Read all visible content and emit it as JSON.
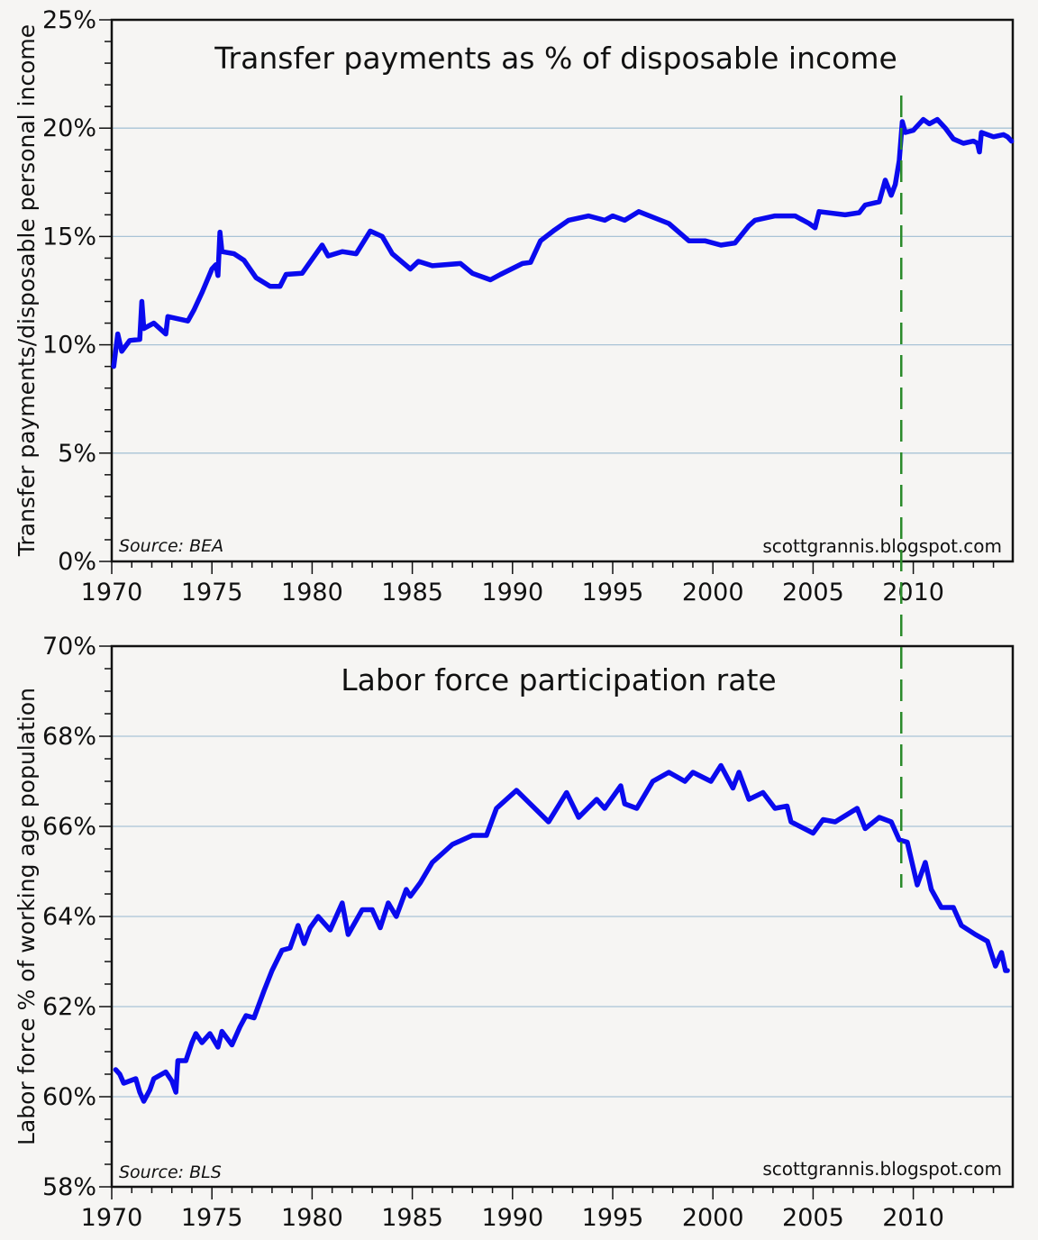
{
  "colors": {
    "line": "#0a0aee",
    "grid": "#a9c3d6",
    "marker": "#2a8a2a",
    "axis": "#111111"
  },
  "annotation": {
    "type": "vertical-dashed-line",
    "x": 2009.4
  },
  "chart_data": [
    {
      "type": "line",
      "title": "Transfer payments as % of disposable income",
      "ylabel": "Transfer payments/disposable personal income",
      "xlabel": "",
      "source": "Source: BEA",
      "watermark": "scottgrannis.blogspot.com",
      "xlim": [
        1970,
        2015
      ],
      "ylim": [
        0,
        25
      ],
      "xticks": [
        1970,
        1975,
        1980,
        1985,
        1990,
        1995,
        2000,
        2005,
        2010
      ],
      "xtick_labels": [
        "1970",
        "1975",
        "1980",
        "1985",
        "1990",
        "1995",
        "2000",
        "2005",
        "2010"
      ],
      "yticks": [
        0,
        5,
        10,
        15,
        20,
        25
      ],
      "ytick_labels": [
        "0%",
        "5%",
        "10%",
        "15%",
        "20%",
        "25%"
      ],
      "grid": true,
      "series": [
        {
          "name": "Transfer payments % of disposable income",
          "points": [
            [
              1970.1,
              9.0
            ],
            [
              1970.3,
              10.5
            ],
            [
              1970.5,
              9.7
            ],
            [
              1970.9,
              10.2
            ],
            [
              1971.4,
              10.25
            ],
            [
              1971.5,
              12.0
            ],
            [
              1971.6,
              10.75
            ],
            [
              1972.1,
              11.0
            ],
            [
              1972.7,
              10.5
            ],
            [
              1972.8,
              11.3
            ],
            [
              1973.8,
              11.1
            ],
            [
              1974.1,
              11.6
            ],
            [
              1974.5,
              12.4
            ],
            [
              1975.0,
              13.5
            ],
            [
              1975.2,
              13.7
            ],
            [
              1975.3,
              13.2
            ],
            [
              1975.4,
              15.2
            ],
            [
              1975.5,
              14.3
            ],
            [
              1976.1,
              14.2
            ],
            [
              1976.6,
              13.9
            ],
            [
              1977.2,
              13.1
            ],
            [
              1977.9,
              12.7
            ],
            [
              1978.4,
              12.7
            ],
            [
              1978.7,
              13.25
            ],
            [
              1979.5,
              13.3
            ],
            [
              1980.5,
              14.6
            ],
            [
              1980.8,
              14.1
            ],
            [
              1981.5,
              14.3
            ],
            [
              1982.2,
              14.2
            ],
            [
              1982.9,
              15.25
            ],
            [
              1983.5,
              15.0
            ],
            [
              1984.0,
              14.2
            ],
            [
              1984.9,
              13.5
            ],
            [
              1985.3,
              13.85
            ],
            [
              1986.0,
              13.65
            ],
            [
              1987.4,
              13.75
            ],
            [
              1988.0,
              13.3
            ],
            [
              1988.9,
              13.0
            ],
            [
              1989.4,
              13.25
            ],
            [
              1990.5,
              13.75
            ],
            [
              1990.9,
              13.8
            ],
            [
              1991.4,
              14.8
            ],
            [
              1992.1,
              15.3
            ],
            [
              1992.8,
              15.75
            ],
            [
              1993.8,
              15.95
            ],
            [
              1994.6,
              15.75
            ],
            [
              1995.0,
              15.95
            ],
            [
              1995.6,
              15.75
            ],
            [
              1996.3,
              16.15
            ],
            [
              1997.8,
              15.6
            ],
            [
              1998.8,
              14.8
            ],
            [
              1999.6,
              14.8
            ],
            [
              2000.4,
              14.6
            ],
            [
              2001.1,
              14.7
            ],
            [
              2001.8,
              15.5
            ],
            [
              2002.1,
              15.75
            ],
            [
              2003.1,
              15.95
            ],
            [
              2004.1,
              15.95
            ],
            [
              2004.8,
              15.6
            ],
            [
              2005.1,
              15.4
            ],
            [
              2005.3,
              16.15
            ],
            [
              2006.6,
              16.0
            ],
            [
              2007.3,
              16.1
            ],
            [
              2007.6,
              16.45
            ],
            [
              2008.3,
              16.6
            ],
            [
              2008.6,
              17.6
            ],
            [
              2008.9,
              16.9
            ],
            [
              2009.1,
              17.4
            ],
            [
              2009.3,
              18.5
            ],
            [
              2009.45,
              20.3
            ],
            [
              2009.6,
              19.8
            ],
            [
              2010.0,
              19.9
            ],
            [
              2010.5,
              20.4
            ],
            [
              2010.8,
              20.2
            ],
            [
              2011.2,
              20.4
            ],
            [
              2011.6,
              20.0
            ],
            [
              2012.0,
              19.5
            ],
            [
              2012.5,
              19.3
            ],
            [
              2013.0,
              19.4
            ],
            [
              2013.2,
              19.3
            ],
            [
              2013.3,
              18.9
            ],
            [
              2013.4,
              19.8
            ],
            [
              2014.0,
              19.6
            ],
            [
              2014.5,
              19.7
            ],
            [
              2014.7,
              19.6
            ],
            [
              2014.9,
              19.4
            ]
          ]
        }
      ]
    },
    {
      "type": "line",
      "title": "Labor force participation rate",
      "ylabel": "Labor force % of working age population",
      "xlabel": "",
      "source": "Source: BLS",
      "watermark": "scottgrannis.blogspot.com",
      "xlim": [
        1970,
        2015
      ],
      "ylim": [
        58,
        70
      ],
      "xticks": [
        1970,
        1975,
        1980,
        1985,
        1990,
        1995,
        2000,
        2005,
        2010
      ],
      "xtick_labels": [
        "1970",
        "1975",
        "1980",
        "1985",
        "1990",
        "1995",
        "2000",
        "2005",
        "2010"
      ],
      "yticks": [
        58,
        60,
        62,
        64,
        66,
        68,
        70
      ],
      "ytick_labels": [
        "58%",
        "60%",
        "62%",
        "64%",
        "66%",
        "68%",
        "70%"
      ],
      "grid": true,
      "series": [
        {
          "name": "Labor force participation rate",
          "points": [
            [
              1970.2,
              60.6
            ],
            [
              1970.4,
              60.5
            ],
            [
              1970.6,
              60.3
            ],
            [
              1971.2,
              60.4
            ],
            [
              1971.4,
              60.1
            ],
            [
              1971.6,
              59.9
            ],
            [
              1971.9,
              60.15
            ],
            [
              1972.1,
              60.4
            ],
            [
              1972.7,
              60.55
            ],
            [
              1973.0,
              60.35
            ],
            [
              1973.2,
              60.1
            ],
            [
              1973.3,
              60.8
            ],
            [
              1973.7,
              60.8
            ],
            [
              1974.0,
              61.2
            ],
            [
              1974.2,
              61.4
            ],
            [
              1974.5,
              61.2
            ],
            [
              1974.9,
              61.4
            ],
            [
              1975.3,
              61.1
            ],
            [
              1975.5,
              61.45
            ],
            [
              1976.0,
              61.15
            ],
            [
              1976.4,
              61.55
            ],
            [
              1976.7,
              61.8
            ],
            [
              1977.1,
              61.75
            ],
            [
              1977.6,
              62.35
            ],
            [
              1978.0,
              62.8
            ],
            [
              1978.5,
              63.25
            ],
            [
              1978.9,
              63.3
            ],
            [
              1979.3,
              63.8
            ],
            [
              1979.6,
              63.4
            ],
            [
              1979.9,
              63.75
            ],
            [
              1980.3,
              64.0
            ],
            [
              1980.9,
              63.7
            ],
            [
              1981.5,
              64.3
            ],
            [
              1981.8,
              63.6
            ],
            [
              1982.5,
              64.15
            ],
            [
              1983.0,
              64.15
            ],
            [
              1983.4,
              63.75
            ],
            [
              1983.8,
              64.3
            ],
            [
              1984.2,
              64.0
            ],
            [
              1984.7,
              64.6
            ],
            [
              1984.9,
              64.45
            ],
            [
              1985.4,
              64.75
            ],
            [
              1986.0,
              65.2
            ],
            [
              1986.5,
              65.4
            ],
            [
              1987.0,
              65.6
            ],
            [
              1987.5,
              65.7
            ],
            [
              1988.0,
              65.8
            ],
            [
              1988.7,
              65.8
            ],
            [
              1989.2,
              66.4
            ],
            [
              1990.2,
              66.8
            ],
            [
              1991.0,
              66.45
            ],
            [
              1991.8,
              66.1
            ],
            [
              1992.7,
              66.75
            ],
            [
              1993.3,
              66.2
            ],
            [
              1994.2,
              66.6
            ],
            [
              1994.6,
              66.4
            ],
            [
              1995.4,
              66.9
            ],
            [
              1995.6,
              66.5
            ],
            [
              1996.2,
              66.4
            ],
            [
              1997.0,
              67.0
            ],
            [
              1997.8,
              67.2
            ],
            [
              1998.6,
              67.0
            ],
            [
              1999.0,
              67.2
            ],
            [
              1999.9,
              67.0
            ],
            [
              2000.4,
              67.35
            ],
            [
              2001.0,
              66.85
            ],
            [
              2001.3,
              67.2
            ],
            [
              2001.8,
              66.6
            ],
            [
              2002.5,
              66.75
            ],
            [
              2003.1,
              66.4
            ],
            [
              2003.7,
              66.45
            ],
            [
              2003.9,
              66.1
            ],
            [
              2005.0,
              65.85
            ],
            [
              2005.5,
              66.15
            ],
            [
              2006.1,
              66.1
            ],
            [
              2007.2,
              66.4
            ],
            [
              2007.6,
              65.95
            ],
            [
              2008.3,
              66.2
            ],
            [
              2008.9,
              66.1
            ],
            [
              2009.3,
              65.7
            ],
            [
              2009.7,
              65.65
            ],
            [
              2010.2,
              64.7
            ],
            [
              2010.6,
              65.2
            ],
            [
              2010.9,
              64.6
            ],
            [
              2011.4,
              64.2
            ],
            [
              2012.0,
              64.2
            ],
            [
              2012.4,
              63.8
            ],
            [
              2013.1,
              63.6
            ],
            [
              2013.7,
              63.45
            ],
            [
              2014.1,
              62.9
            ],
            [
              2014.4,
              63.2
            ],
            [
              2014.6,
              62.8
            ],
            [
              2014.7,
              62.8
            ]
          ]
        }
      ]
    }
  ]
}
